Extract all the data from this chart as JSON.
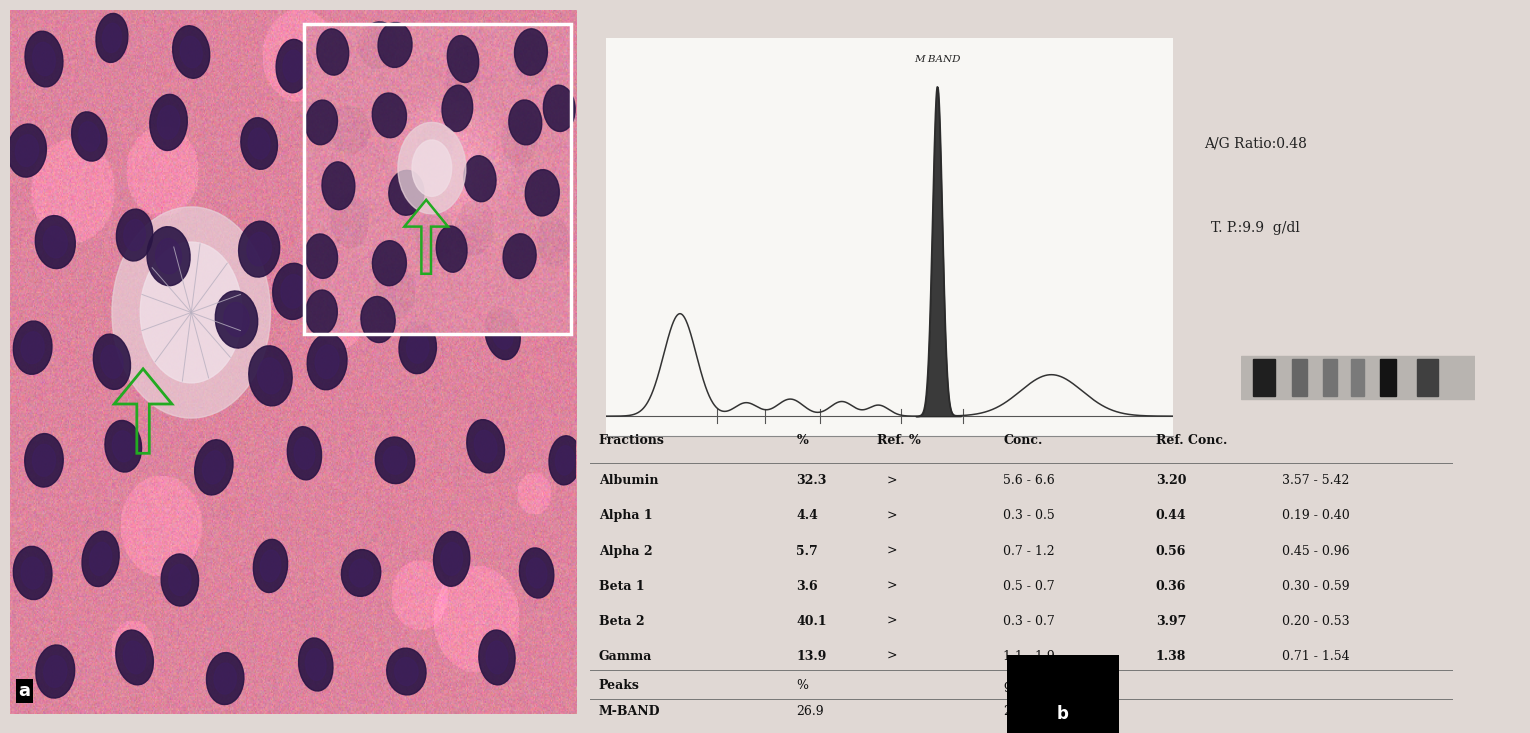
{
  "title_a": "a",
  "title_b": "b",
  "ag_ratio": "A/G Ratio:0.48",
  "tp": "T. P.:9.9  g/dl",
  "m_band_label": "M BAND",
  "table_headers": [
    "Fractions",
    "%",
    "Ref. %",
    "Conc.",
    "Ref. Conc."
  ],
  "table_rows": [
    [
      "Albumin",
      "32.3",
      ">",
      "5.6 - 6.6",
      "3.20",
      "3.57 - 5.42"
    ],
    [
      "Alpha 1",
      "4.4",
      ">",
      "0.3 - 0.5",
      "0.44",
      "0.19 - 0.40"
    ],
    [
      "Alpha 2",
      "5.7",
      ">",
      "0.7 - 1.2",
      "0.56",
      "0.45 - 0.96"
    ],
    [
      "Beta 1",
      "3.6",
      ">",
      "0.5 - 0.7",
      "0.36",
      "0.30 - 0.59"
    ],
    [
      "Beta 2",
      "40.1",
      ">",
      "0.3 - 0.7",
      "3.97",
      "0.20 - 0.53"
    ],
    [
      "Gamma",
      "13.9",
      ">",
      "1.1 - 1.9",
      "1.38",
      "0.71 - 1.54"
    ]
  ],
  "peaks_row": [
    "Peaks",
    "%",
    "g/dl"
  ],
  "m_band_row": [
    "M-BAND",
    "26.9",
    "2.66"
  ],
  "right_bg": "#e8e4e0",
  "graph_bg": "#f5f3f0",
  "table_bg": "#e8e4e0",
  "left_bg_color": "#d4a0b0"
}
